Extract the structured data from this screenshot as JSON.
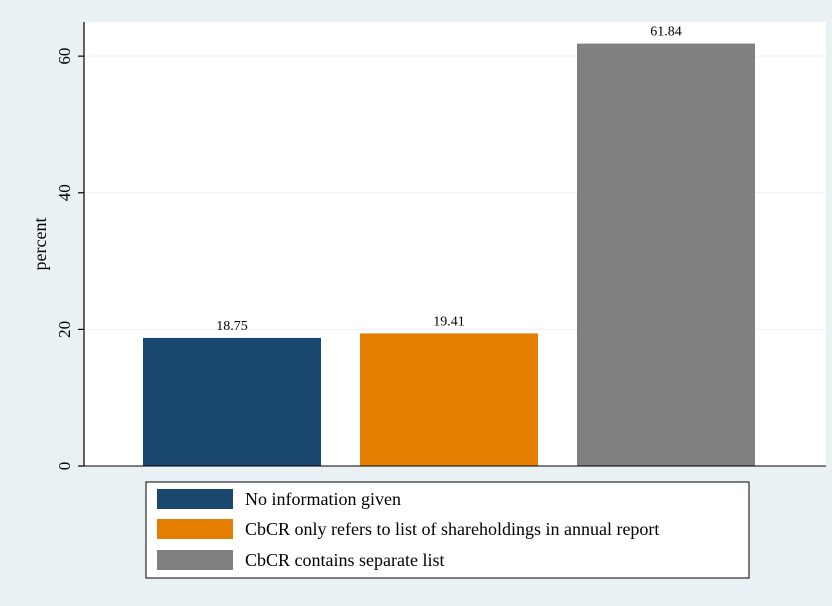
{
  "chart_data": {
    "type": "bar",
    "categories": [
      "No information given",
      "CbCR only refers to list of shareholdings in annual report",
      "CbCR contains separate list"
    ],
    "values": [
      18.75,
      19.41,
      61.84
    ],
    "data_labels": [
      "18.75",
      "19.41",
      "61.84"
    ],
    "colors": [
      "#1a476f",
      "#e37e00",
      "#808080"
    ],
    "title": "",
    "xlabel": "",
    "ylabel": "percent",
    "ylim": [
      0,
      65
    ],
    "yticks": [
      0,
      20,
      40,
      60
    ],
    "ytick_labels": [
      "0",
      "20",
      "40",
      "60"
    ],
    "grid": true,
    "legend": {
      "position": "bottom",
      "entries": [
        "No information given",
        "CbCR only refers to list of shareholdings in annual report",
        "CbCR contains separate list"
      ]
    }
  },
  "colors": {
    "page_background": "#eaf1f4",
    "plot_background": "#ffffff",
    "gridline": "#eaf1f4"
  }
}
